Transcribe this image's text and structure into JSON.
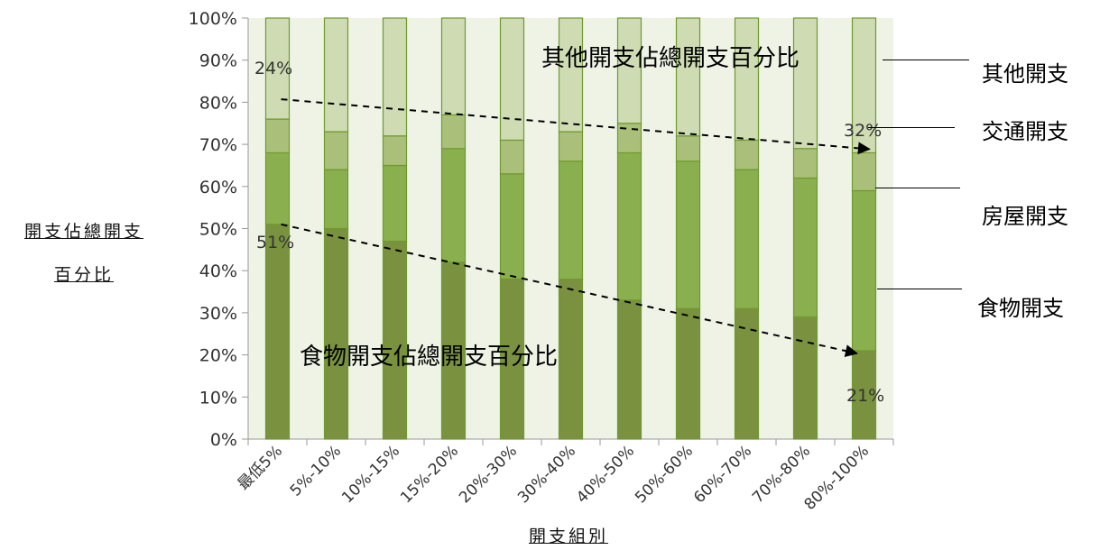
{
  "chart_data": {
    "type": "bar",
    "stacked": true,
    "categories": [
      "最低5%",
      "5%-10%",
      "10%-15%",
      "15%-20%",
      "20%-30%",
      "30%-40%",
      "40%-50%",
      "50%-60%",
      "60%-70%",
      "70%-80%",
      "80%-100%"
    ],
    "series": [
      {
        "name": "食物開支",
        "values": [
          51,
          50,
          47,
          42,
          38,
          38,
          33,
          31,
          31,
          29,
          21
        ],
        "color": "#7a9140"
      },
      {
        "name": "房屋開支",
        "values": [
          17,
          14,
          18,
          27,
          25,
          28,
          35,
          35,
          33,
          33,
          38
        ],
        "color": "#8aaf4e"
      },
      {
        "name": "交通開支",
        "values": [
          8,
          9,
          7,
          8,
          8,
          7,
          7,
          6,
          7,
          7,
          9
        ],
        "color": "#aac07a"
      },
      {
        "name": "其他開支",
        "values": [
          24,
          27,
          28,
          23,
          29,
          27,
          25,
          28,
          29,
          31,
          32
        ],
        "color": "#cedbb3"
      }
    ],
    "ylim": [
      0,
      100
    ],
    "yticks": [
      "0%",
      "10%",
      "20%",
      "30%",
      "40%",
      "50%",
      "60%",
      "70%",
      "80%",
      "90%",
      "100%"
    ],
    "xlabel": "開支組別",
    "ylabel_line1": "開支佔總開支",
    "ylabel_line2": "百分比",
    "annotations": {
      "other_title": "其他開支佔總開支百分比",
      "food_title": "食物開支佔總開支百分比",
      "other_start": "24%",
      "other_end": "32%",
      "food_start": "51%",
      "food_end": "21%"
    },
    "colors": {
      "plot_bg": "#eef3e6",
      "bar_border": "#6f9a2e",
      "axis": "#999999"
    }
  }
}
